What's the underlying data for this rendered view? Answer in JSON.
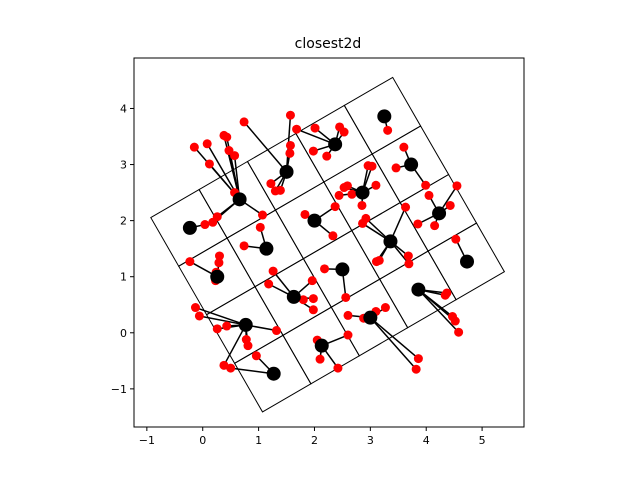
{
  "chart_data": {
    "type": "scatter",
    "title": "closest2d",
    "xlabel": "",
    "ylabel": "",
    "xlim": [
      -1.23,
      5.75
    ],
    "ylim": [
      -1.68,
      4.9
    ],
    "xticks": [
      -1,
      0,
      1,
      2,
      3,
      4,
      5
    ],
    "yticks": [
      -1,
      0,
      1,
      2,
      3,
      4
    ],
    "xtick_labels": [
      "−1",
      "0",
      "1",
      "2",
      "3",
      "4",
      "5"
    ],
    "ytick_labels": [
      "−1",
      "0",
      "1",
      "2",
      "3",
      "4"
    ],
    "grid": false,
    "legend": "none",
    "colors": {
      "centers": "#000000",
      "points": "#ff0000",
      "lines": "#000000",
      "cells": "#000000"
    },
    "grid_cells": {
      "origin": [
        1.07,
        -1.41
      ],
      "u": [
        0.866,
        0.5
      ],
      "v": [
        -0.5,
        0.866
      ],
      "nu": 5,
      "nv": 4,
      "cell": 1.0,
      "rotation_deg": 30
    },
    "centers": [
      [
        -0.23,
        1.87
      ],
      [
        0.66,
        2.38
      ],
      [
        1.5,
        2.87
      ],
      [
        2.37,
        3.36
      ],
      [
        3.25,
        3.86
      ],
      [
        0.26,
        1.0
      ],
      [
        1.14,
        1.5
      ],
      [
        2.0,
        2.0
      ],
      [
        2.86,
        2.5
      ],
      [
        3.73,
        3.0
      ],
      [
        0.77,
        0.14
      ],
      [
        1.63,
        0.64
      ],
      [
        2.5,
        1.13
      ],
      [
        3.36,
        1.63
      ],
      [
        4.23,
        2.13
      ],
      [
        1.27,
        -0.73
      ],
      [
        2.13,
        -0.23
      ],
      [
        3.0,
        0.27
      ],
      [
        3.86,
        0.77
      ],
      [
        4.73,
        1.27
      ]
    ],
    "points": [
      [
        -0.15,
        3.31
      ],
      [
        0.12,
        3.01
      ],
      [
        0.08,
        3.37
      ],
      [
        0.38,
        3.52
      ],
      [
        0.43,
        3.49
      ],
      [
        0.47,
        3.25
      ],
      [
        0.57,
        3.16
      ],
      [
        0.57,
        2.5
      ],
      [
        0.26,
        2.07
      ],
      [
        0.18,
        1.97
      ],
      [
        0.04,
        1.93
      ],
      [
        0.29,
        1.25
      ],
      [
        0.3,
        1.37
      ],
      [
        0.24,
        1.08
      ],
      [
        0.23,
        0.93
      ],
      [
        -0.23,
        1.27
      ],
      [
        -0.13,
        0.45
      ],
      [
        -0.06,
        0.3
      ],
      [
        0.26,
        0.07
      ],
      [
        0.43,
        0.12
      ],
      [
        0.74,
        1.55
      ],
      [
        1.03,
        1.88
      ],
      [
        1.07,
        2.1
      ],
      [
        1.3,
        2.53
      ],
      [
        1.22,
        2.66
      ],
      [
        1.39,
        2.54
      ],
      [
        1.57,
        3.88
      ],
      [
        1.57,
        3.34
      ],
      [
        1.56,
        3.2
      ],
      [
        1.68,
        3.63
      ],
      [
        0.74,
        3.76
      ],
      [
        1.26,
        1.1
      ],
      [
        1.18,
        0.87
      ],
      [
        2.01,
        3.65
      ],
      [
        1.98,
        3.24
      ],
      [
        2.22,
        3.15
      ],
      [
        2.45,
        3.67
      ],
      [
        2.53,
        3.58
      ],
      [
        1.83,
        2.11
      ],
      [
        2.33,
        1.73
      ],
      [
        2.37,
        2.25
      ],
      [
        2.44,
        2.45
      ],
      [
        2.53,
        2.59
      ],
      [
        2.59,
        2.62
      ],
      [
        2.67,
        2.47
      ],
      [
        2.85,
        2.27
      ],
      [
        2.92,
        2.04
      ],
      [
        2.86,
        1.95
      ],
      [
        2.96,
        2.98
      ],
      [
        3.03,
        2.97
      ],
      [
        3.1,
        2.63
      ],
      [
        3.11,
        1.27
      ],
      [
        3.16,
        1.29
      ],
      [
        3.31,
        3.61
      ],
      [
        3.46,
        2.94
      ],
      [
        3.6,
        3.31
      ],
      [
        3.63,
        2.24
      ],
      [
        3.68,
        1.37
      ],
      [
        3.69,
        1.23
      ],
      [
        3.85,
        1.94
      ],
      [
        3.99,
        2.63
      ],
      [
        4.05,
        2.45
      ],
      [
        4.15,
        1.91
      ],
      [
        4.43,
        2.27
      ],
      [
        4.55,
        2.62
      ],
      [
        4.47,
        0.29
      ],
      [
        4.52,
        0.21
      ],
      [
        4.58,
        0.01
      ],
      [
        4.53,
        1.67
      ],
      [
        4.34,
        0.67
      ],
      [
        4.37,
        0.71
      ],
      [
        2.18,
        1.14
      ],
      [
        1.96,
        0.93
      ],
      [
        1.8,
        0.59
      ],
      [
        1.98,
        0.61
      ],
      [
        1.98,
        0.41
      ],
      [
        2.56,
        0.63
      ],
      [
        2.6,
        0.31
      ],
      [
        2.6,
        -0.04
      ],
      [
        2.42,
        -0.63
      ],
      [
        2.05,
        -0.13
      ],
      [
        2.1,
        -0.47
      ],
      [
        2.88,
        0.26
      ],
      [
        3.01,
        0.25
      ],
      [
        3.1,
        0.38
      ],
      [
        3.27,
        0.45
      ],
      [
        3.82,
        -0.65
      ],
      [
        3.86,
        -0.46
      ],
      [
        0.81,
        -0.23
      ],
      [
        0.78,
        -0.12
      ],
      [
        0.96,
        -0.41
      ],
      [
        0.38,
        -0.58
      ],
      [
        0.5,
        -0.63
      ],
      [
        1.32,
        0.04
      ]
    ],
    "links": [
      [
        -0.15,
        3.31,
        0.66,
        2.38
      ],
      [
        0.12,
        3.01,
        0.66,
        2.38
      ],
      [
        0.08,
        3.37,
        0.66,
        2.38
      ],
      [
        0.38,
        3.52,
        0.66,
        2.38
      ],
      [
        0.43,
        3.49,
        0.66,
        2.38
      ],
      [
        0.47,
        3.25,
        0.66,
        2.38
      ],
      [
        0.57,
        3.16,
        0.66,
        2.38
      ],
      [
        0.57,
        2.5,
        0.66,
        2.38
      ],
      [
        0.26,
        2.07,
        0.66,
        2.38
      ],
      [
        0.18,
        1.97,
        0.66,
        2.38
      ],
      [
        0.04,
        1.93,
        -0.23,
        1.87
      ],
      [
        0.29,
        1.25,
        0.26,
        1.0
      ],
      [
        0.3,
        1.37,
        0.26,
        1.0
      ],
      [
        0.24,
        1.08,
        0.26,
        1.0
      ],
      [
        0.23,
        0.93,
        0.26,
        1.0
      ],
      [
        -0.23,
        1.27,
        0.26,
        1.0
      ],
      [
        -0.13,
        0.45,
        0.77,
        0.14
      ],
      [
        -0.06,
        0.3,
        0.77,
        0.14
      ],
      [
        0.26,
        0.07,
        0.77,
        0.14
      ],
      [
        0.43,
        0.12,
        0.77,
        0.14
      ],
      [
        0.74,
        1.55,
        1.14,
        1.5
      ],
      [
        1.03,
        1.88,
        1.14,
        1.5
      ],
      [
        1.07,
        2.1,
        0.66,
        2.38
      ],
      [
        1.3,
        2.53,
        1.5,
        2.87
      ],
      [
        1.22,
        2.66,
        1.5,
        2.87
      ],
      [
        1.39,
        2.54,
        1.5,
        2.87
      ],
      [
        1.57,
        3.88,
        1.5,
        2.87
      ],
      [
        1.57,
        3.34,
        1.5,
        2.87
      ],
      [
        1.56,
        3.2,
        1.5,
        2.87
      ],
      [
        1.68,
        3.63,
        2.37,
        3.36
      ],
      [
        0.74,
        3.76,
        1.5,
        2.87
      ],
      [
        1.26,
        1.1,
        1.63,
        0.64
      ],
      [
        1.18,
        0.87,
        1.63,
        0.64
      ],
      [
        2.01,
        3.65,
        2.37,
        3.36
      ],
      [
        1.98,
        3.24,
        2.37,
        3.36
      ],
      [
        2.22,
        3.15,
        2.37,
        3.36
      ],
      [
        2.45,
        3.67,
        2.37,
        3.36
      ],
      [
        2.53,
        3.58,
        2.37,
        3.36
      ],
      [
        1.83,
        2.11,
        2.0,
        2.0
      ],
      [
        2.33,
        1.73,
        2.0,
        2.0
      ],
      [
        2.37,
        2.25,
        2.0,
        2.0
      ],
      [
        2.44,
        2.45,
        2.86,
        2.5
      ],
      [
        2.53,
        2.59,
        2.86,
        2.5
      ],
      [
        2.59,
        2.62,
        2.86,
        2.5
      ],
      [
        2.67,
        2.47,
        2.86,
        2.5
      ],
      [
        2.85,
        2.27,
        2.86,
        2.5
      ],
      [
        2.92,
        2.04,
        3.36,
        1.63
      ],
      [
        2.86,
        1.95,
        3.36,
        1.63
      ],
      [
        2.96,
        2.98,
        2.86,
        2.5
      ],
      [
        3.03,
        2.97,
        2.86,
        2.5
      ],
      [
        3.1,
        2.63,
        2.86,
        2.5
      ],
      [
        3.11,
        1.27,
        3.36,
        1.63
      ],
      [
        3.16,
        1.29,
        3.36,
        1.63
      ],
      [
        3.31,
        3.61,
        3.25,
        3.86
      ],
      [
        3.46,
        2.94,
        3.73,
        3.0
      ],
      [
        3.6,
        3.31,
        3.73,
        3.0
      ],
      [
        3.63,
        2.24,
        3.36,
        1.63
      ],
      [
        3.68,
        1.37,
        3.36,
        1.63
      ],
      [
        3.69,
        1.23,
        3.36,
        1.63
      ],
      [
        3.85,
        1.94,
        4.23,
        2.13
      ],
      [
        3.99,
        2.63,
        3.73,
        3.0
      ],
      [
        4.05,
        2.45,
        4.23,
        2.13
      ],
      [
        4.15,
        1.91,
        4.23,
        2.13
      ],
      [
        4.43,
        2.27,
        4.23,
        2.13
      ],
      [
        4.55,
        2.62,
        4.23,
        2.13
      ],
      [
        4.47,
        0.29,
        3.86,
        0.77
      ],
      [
        4.52,
        0.21,
        3.86,
        0.77
      ],
      [
        4.58,
        0.01,
        3.86,
        0.77
      ],
      [
        4.53,
        1.67,
        4.73,
        1.27
      ],
      [
        4.34,
        0.67,
        3.86,
        0.77
      ],
      [
        4.37,
        0.71,
        3.86,
        0.77
      ],
      [
        2.18,
        1.14,
        2.5,
        1.13
      ],
      [
        1.96,
        0.93,
        1.63,
        0.64
      ],
      [
        1.8,
        0.59,
        1.63,
        0.64
      ],
      [
        1.98,
        0.61,
        1.63,
        0.64
      ],
      [
        1.98,
        0.41,
        1.63,
        0.64
      ],
      [
        2.56,
        0.63,
        2.5,
        1.13
      ],
      [
        2.6,
        0.31,
        3.0,
        0.27
      ],
      [
        2.6,
        -0.04,
        2.13,
        -0.23
      ],
      [
        2.42,
        -0.63,
        2.13,
        -0.23
      ],
      [
        2.05,
        -0.13,
        2.13,
        -0.23
      ],
      [
        2.1,
        -0.47,
        2.13,
        -0.23
      ],
      [
        2.88,
        0.26,
        3.0,
        0.27
      ],
      [
        3.01,
        0.25,
        3.0,
        0.27
      ],
      [
        3.1,
        0.38,
        3.0,
        0.27
      ],
      [
        3.27,
        0.45,
        3.0,
        0.27
      ],
      [
        3.82,
        -0.65,
        3.0,
        0.27
      ],
      [
        3.86,
        -0.46,
        3.0,
        0.27
      ],
      [
        0.81,
        -0.23,
        0.77,
        0.14
      ],
      [
        0.78,
        -0.12,
        0.77,
        0.14
      ],
      [
        0.96,
        -0.41,
        1.27,
        -0.73
      ],
      [
        0.38,
        -0.58,
        0.77,
        0.14
      ],
      [
        0.5,
        -0.63,
        1.27,
        -0.73
      ],
      [
        1.32,
        0.04,
        0.77,
        0.14
      ]
    ]
  }
}
